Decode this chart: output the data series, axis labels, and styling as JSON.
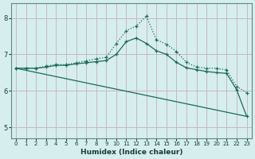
{
  "bg_color": "#d6eeee",
  "grid_color": "#c8b8c0",
  "line_color": "#1a6b5a",
  "xlabel": "Humidex (Indice chaleur)",
  "xlim": [
    -0.5,
    23.5
  ],
  "ylim": [
    4.7,
    8.4
  ],
  "yticks": [
    5,
    6,
    7,
    8
  ],
  "xticks": [
    0,
    1,
    2,
    3,
    4,
    5,
    6,
    7,
    8,
    9,
    10,
    11,
    12,
    13,
    14,
    15,
    16,
    17,
    18,
    19,
    20,
    21,
    22,
    23
  ],
  "line1_x": [
    0,
    1,
    2,
    3,
    4,
    5,
    6,
    7,
    8,
    9,
    10,
    11,
    12,
    13,
    14,
    15,
    16,
    17,
    18,
    19,
    20,
    21,
    22,
    23
  ],
  "line1_y": [
    6.62,
    6.62,
    6.62,
    6.68,
    6.72,
    6.72,
    6.77,
    6.82,
    6.88,
    6.92,
    7.3,
    7.65,
    7.78,
    8.05,
    7.4,
    7.28,
    7.08,
    6.78,
    6.65,
    6.62,
    6.62,
    6.57,
    6.12,
    5.95
  ],
  "line2_x": [
    0,
    1,
    2,
    3,
    4,
    5,
    6,
    7,
    8,
    9,
    10,
    11,
    12,
    13,
    14,
    15,
    16,
    17,
    18,
    19,
    20,
    21,
    22,
    23
  ],
  "line2_y": [
    6.62,
    6.62,
    6.62,
    6.65,
    6.7,
    6.7,
    6.74,
    6.77,
    6.8,
    6.83,
    7.0,
    7.35,
    7.45,
    7.3,
    7.1,
    7.0,
    6.78,
    6.63,
    6.58,
    6.53,
    6.5,
    6.48,
    6.03,
    5.3
  ],
  "line3_x": [
    0,
    23
  ],
  "line3_y": [
    6.62,
    5.3
  ]
}
